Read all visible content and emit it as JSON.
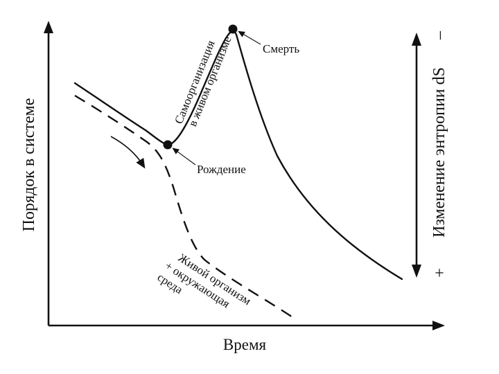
{
  "axes": {
    "y_label": "Порядок в системе",
    "x_label": "Время",
    "right_label": "Изменение энтропии dS",
    "right_top_sign": "–",
    "right_bottom_sign": "+"
  },
  "annotations": {
    "death": "Смерть",
    "birth": "Рождение",
    "self_org_line1": "Самоорганизация",
    "self_org_line2": "в живом организме",
    "env_line1": "Живой организм",
    "env_line2": "+ окружающая",
    "env_line3": "среда"
  },
  "colors": {
    "ink": "#111111",
    "background": "#ffffff"
  }
}
